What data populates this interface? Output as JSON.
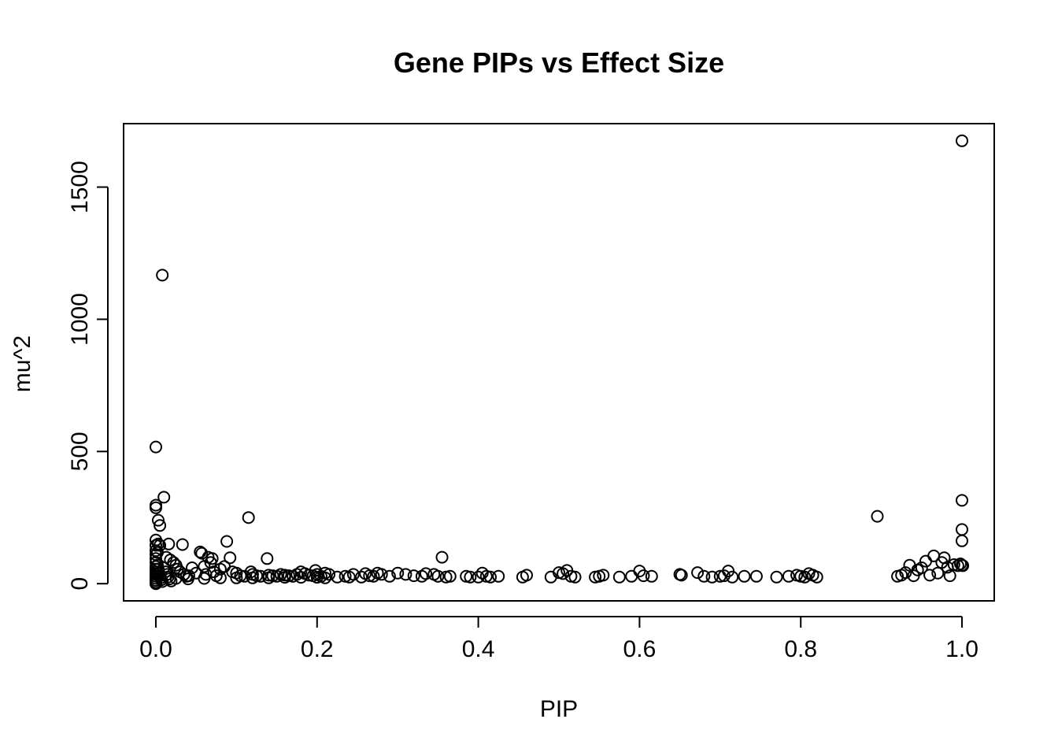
{
  "chart_data": {
    "type": "scatter",
    "title": "Gene PIPs vs Effect Size",
    "xlabel": "PIP",
    "ylabel": "mu^2",
    "xlim": [
      -0.04,
      1.04
    ],
    "ylim": [
      -65,
      1740
    ],
    "xticks": [
      0.0,
      0.2,
      0.4,
      0.6,
      0.8,
      1.0
    ],
    "xtick_labels": [
      "0.0",
      "0.2",
      "0.4",
      "0.6",
      "0.8",
      "1.0"
    ],
    "yticks": [
      0,
      500,
      1000,
      1500
    ],
    "ytick_labels": [
      "0",
      "500",
      "1000",
      "1500"
    ],
    "grid": false,
    "legend": "none",
    "points": [
      [
        1.0,
        1675
      ],
      [
        0.008,
        1167
      ],
      [
        0.0,
        517
      ],
      [
        0.01,
        327
      ],
      [
        0.0,
        297
      ],
      [
        0.0,
        287
      ],
      [
        0.003,
        240
      ],
      [
        0.005,
        220
      ],
      [
        0.0,
        165
      ],
      [
        0.0,
        145
      ],
      [
        0.003,
        150
      ],
      [
        0.005,
        145
      ],
      [
        0.0,
        125
      ],
      [
        0.0,
        110
      ],
      [
        0.002,
        118
      ],
      [
        0.0,
        95
      ],
      [
        0.0,
        80
      ],
      [
        0.0,
        65
      ],
      [
        0.0,
        55
      ],
      [
        0.0,
        45
      ],
      [
        0.0,
        35
      ],
      [
        0.0,
        28
      ],
      [
        0.0,
        20
      ],
      [
        0.0,
        12
      ],
      [
        0.0,
        5
      ],
      [
        0.0,
        0
      ],
      [
        0.002,
        70
      ],
      [
        0.003,
        55
      ],
      [
        0.004,
        40
      ],
      [
        0.005,
        30
      ],
      [
        0.006,
        22
      ],
      [
        0.007,
        15
      ],
      [
        0.008,
        8
      ],
      [
        0.01,
        60
      ],
      [
        0.012,
        45
      ],
      [
        0.014,
        35
      ],
      [
        0.015,
        25
      ],
      [
        0.017,
        18
      ],
      [
        0.019,
        10
      ],
      [
        0.016,
        150
      ],
      [
        0.013,
        100
      ],
      [
        0.018,
        90
      ],
      [
        0.022,
        80
      ],
      [
        0.025,
        70
      ],
      [
        0.027,
        55
      ],
      [
        0.03,
        45
      ],
      [
        0.033,
        148
      ],
      [
        0.035,
        35
      ],
      [
        0.038,
        28
      ],
      [
        0.041,
        30
      ],
      [
        0.045,
        60
      ],
      [
        0.05,
        40
      ],
      [
        0.055,
        120
      ],
      [
        0.057,
        115
      ],
      [
        0.06,
        65
      ],
      [
        0.062,
        35
      ],
      [
        0.065,
        100
      ],
      [
        0.068,
        80
      ],
      [
        0.07,
        95
      ],
      [
        0.072,
        45
      ],
      [
        0.075,
        30
      ],
      [
        0.08,
        55
      ],
      [
        0.085,
        65
      ],
      [
        0.088,
        160
      ],
      [
        0.092,
        98
      ],
      [
        0.095,
        45
      ],
      [
        0.1,
        40
      ],
      [
        0.105,
        30
      ],
      [
        0.11,
        28
      ],
      [
        0.115,
        250
      ],
      [
        0.118,
        45
      ],
      [
        0.12,
        35
      ],
      [
        0.125,
        30
      ],
      [
        0.13,
        28
      ],
      [
        0.138,
        95
      ],
      [
        0.14,
        32
      ],
      [
        0.145,
        30
      ],
      [
        0.15,
        28
      ],
      [
        0.155,
        35
      ],
      [
        0.16,
        32
      ],
      [
        0.165,
        30
      ],
      [
        0.17,
        28
      ],
      [
        0.175,
        35
      ],
      [
        0.18,
        45
      ],
      [
        0.185,
        38
      ],
      [
        0.19,
        32
      ],
      [
        0.195,
        30
      ],
      [
        0.198,
        50
      ],
      [
        0.2,
        35
      ],
      [
        0.205,
        28
      ],
      [
        0.21,
        40
      ],
      [
        0.215,
        35
      ],
      [
        0.025,
        20
      ],
      [
        0.04,
        18
      ],
      [
        0.06,
        20
      ],
      [
        0.08,
        22
      ],
      [
        0.1,
        22
      ],
      [
        0.12,
        22
      ],
      [
        0.14,
        22
      ],
      [
        0.16,
        24
      ],
      [
        0.18,
        24
      ],
      [
        0.2,
        24
      ],
      [
        0.21,
        22
      ],
      [
        0.225,
        25
      ],
      [
        0.235,
        28
      ],
      [
        0.24,
        25
      ],
      [
        0.245,
        35
      ],
      [
        0.255,
        25
      ],
      [
        0.26,
        38
      ],
      [
        0.265,
        30
      ],
      [
        0.27,
        28
      ],
      [
        0.275,
        40
      ],
      [
        0.28,
        35
      ],
      [
        0.29,
        28
      ],
      [
        0.3,
        40
      ],
      [
        0.31,
        35
      ],
      [
        0.32,
        30
      ],
      [
        0.33,
        28
      ],
      [
        0.335,
        38
      ],
      [
        0.345,
        35
      ],
      [
        0.35,
        28
      ],
      [
        0.355,
        100
      ],
      [
        0.36,
        25
      ],
      [
        0.365,
        28
      ],
      [
        0.385,
        28
      ],
      [
        0.39,
        25
      ],
      [
        0.4,
        25
      ],
      [
        0.405,
        40
      ],
      [
        0.41,
        28
      ],
      [
        0.415,
        25
      ],
      [
        0.425,
        28
      ],
      [
        0.455,
        25
      ],
      [
        0.46,
        32
      ],
      [
        0.49,
        25
      ],
      [
        0.5,
        42
      ],
      [
        0.505,
        38
      ],
      [
        0.51,
        50
      ],
      [
        0.515,
        28
      ],
      [
        0.52,
        25
      ],
      [
        0.545,
        25
      ],
      [
        0.55,
        28
      ],
      [
        0.555,
        32
      ],
      [
        0.575,
        25
      ],
      [
        0.59,
        28
      ],
      [
        0.6,
        48
      ],
      [
        0.605,
        30
      ],
      [
        0.615,
        28
      ],
      [
        0.65,
        35
      ],
      [
        0.652,
        32
      ],
      [
        0.672,
        42
      ],
      [
        0.68,
        28
      ],
      [
        0.69,
        25
      ],
      [
        0.7,
        28
      ],
      [
        0.705,
        30
      ],
      [
        0.71,
        48
      ],
      [
        0.715,
        25
      ],
      [
        0.73,
        28
      ],
      [
        0.745,
        28
      ],
      [
        0.77,
        25
      ],
      [
        0.785,
        28
      ],
      [
        0.795,
        32
      ],
      [
        0.8,
        28
      ],
      [
        0.805,
        25
      ],
      [
        0.81,
        38
      ],
      [
        0.815,
        32
      ],
      [
        0.82,
        25
      ],
      [
        0.895,
        255
      ],
      [
        0.92,
        28
      ],
      [
        0.925,
        32
      ],
      [
        0.93,
        42
      ],
      [
        0.935,
        70
      ],
      [
        0.94,
        30
      ],
      [
        0.945,
        52
      ],
      [
        0.95,
        60
      ],
      [
        0.955,
        85
      ],
      [
        0.96,
        32
      ],
      [
        0.965,
        105
      ],
      [
        0.97,
        40
      ],
      [
        0.975,
        80
      ],
      [
        0.978,
        98
      ],
      [
        0.982,
        62
      ],
      [
        0.985,
        30
      ],
      [
        0.99,
        72
      ],
      [
        0.995,
        68
      ],
      [
        0.998,
        75
      ],
      [
        1.0,
        315
      ],
      [
        1.0,
        205
      ],
      [
        1.0,
        162
      ],
      [
        1.0,
        70
      ],
      [
        1.001,
        68
      ]
    ]
  }
}
